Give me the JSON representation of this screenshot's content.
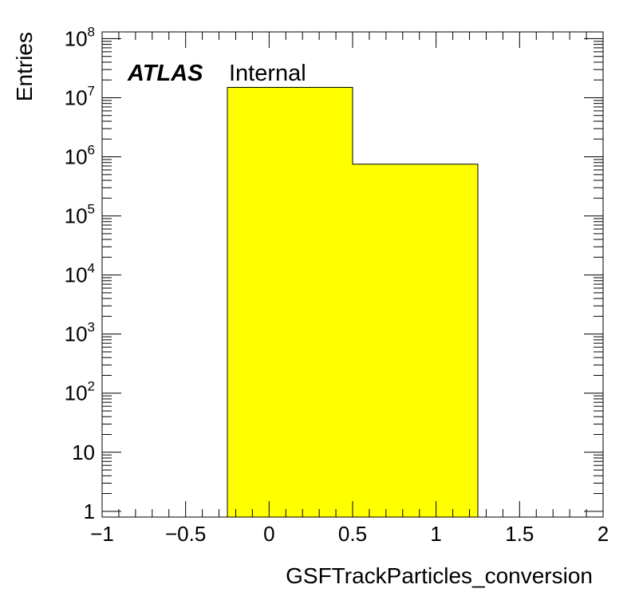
{
  "chart_data": {
    "type": "bar",
    "histogram": true,
    "bins": [
      {
        "low": -0.25,
        "high": 0.5,
        "value": 15000000
      },
      {
        "low": 0.5,
        "high": 1.25,
        "value": 750000
      }
    ],
    "xlabel": "GSFTrackParticles_conversion",
    "ylabel": "Entries",
    "xlim": [
      -1,
      2
    ],
    "ylim": [
      0.8,
      130000000
    ],
    "yscale": "log",
    "x_tick_labels": [
      "−1",
      "−0.5",
      "0",
      "0.5",
      "1",
      "1.5",
      "2"
    ],
    "x_tick_values": [
      -1,
      -0.5,
      0,
      0.5,
      1,
      1.5,
      2
    ],
    "y_tick_values": [
      1,
      10,
      100,
      1000,
      10000,
      100000,
      1000000,
      10000000,
      100000000
    ],
    "y_tick_labels": [
      {
        "base": "1",
        "exp": ""
      },
      {
        "base": "10",
        "exp": ""
      },
      {
        "base": "10",
        "exp": "2"
      },
      {
        "base": "10",
        "exp": "3"
      },
      {
        "base": "10",
        "exp": "4"
      },
      {
        "base": "10",
        "exp": "5"
      },
      {
        "base": "10",
        "exp": "6"
      },
      {
        "base": "10",
        "exp": "7"
      },
      {
        "base": "10",
        "exp": "8"
      }
    ],
    "grid": false,
    "fill_color": "#ffff00",
    "line_color": "#000000",
    "annotation": {
      "bold": "ATLAS",
      "normal": "Internal"
    }
  }
}
